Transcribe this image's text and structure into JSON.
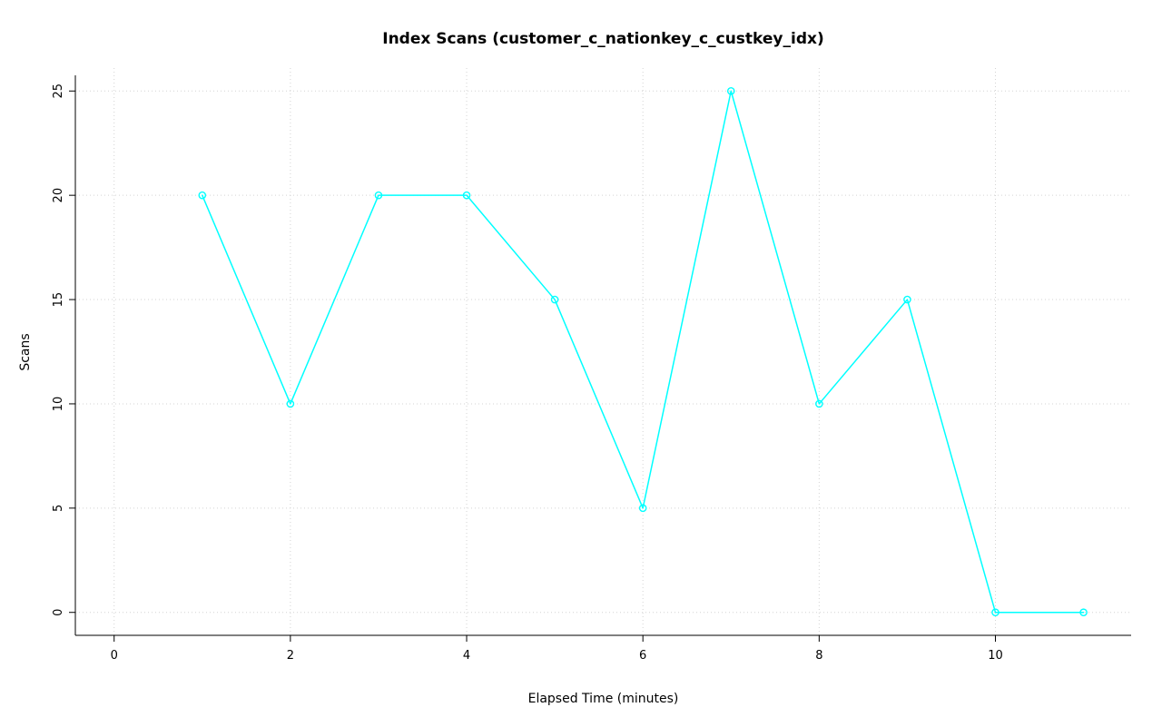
{
  "chart_data": {
    "type": "line",
    "title": "Index Scans (customer_c_nationkey_c_custkey_idx)",
    "xlabel": "Elapsed Time (minutes)",
    "ylabel": "Scans",
    "x": [
      1,
      2,
      3,
      4,
      5,
      6,
      7,
      8,
      9,
      10,
      11
    ],
    "y": [
      20,
      10,
      20,
      20,
      15,
      5,
      25,
      10,
      15,
      0,
      0
    ],
    "x_ticks": [
      0,
      2,
      4,
      6,
      8,
      10
    ],
    "y_ticks": [
      0,
      5,
      10,
      15,
      20,
      25
    ],
    "xlim": [
      -0.44,
      11.54
    ],
    "ylim": [
      -1.1,
      26.1
    ],
    "grid": true,
    "grid_style": "dotted",
    "legend_position": "none",
    "marker": "open-circle",
    "series_color": "#00FFFF",
    "grid_color": "#D3D3D3",
    "axis_color": "#000000",
    "background_color": "#FFFFFF"
  }
}
